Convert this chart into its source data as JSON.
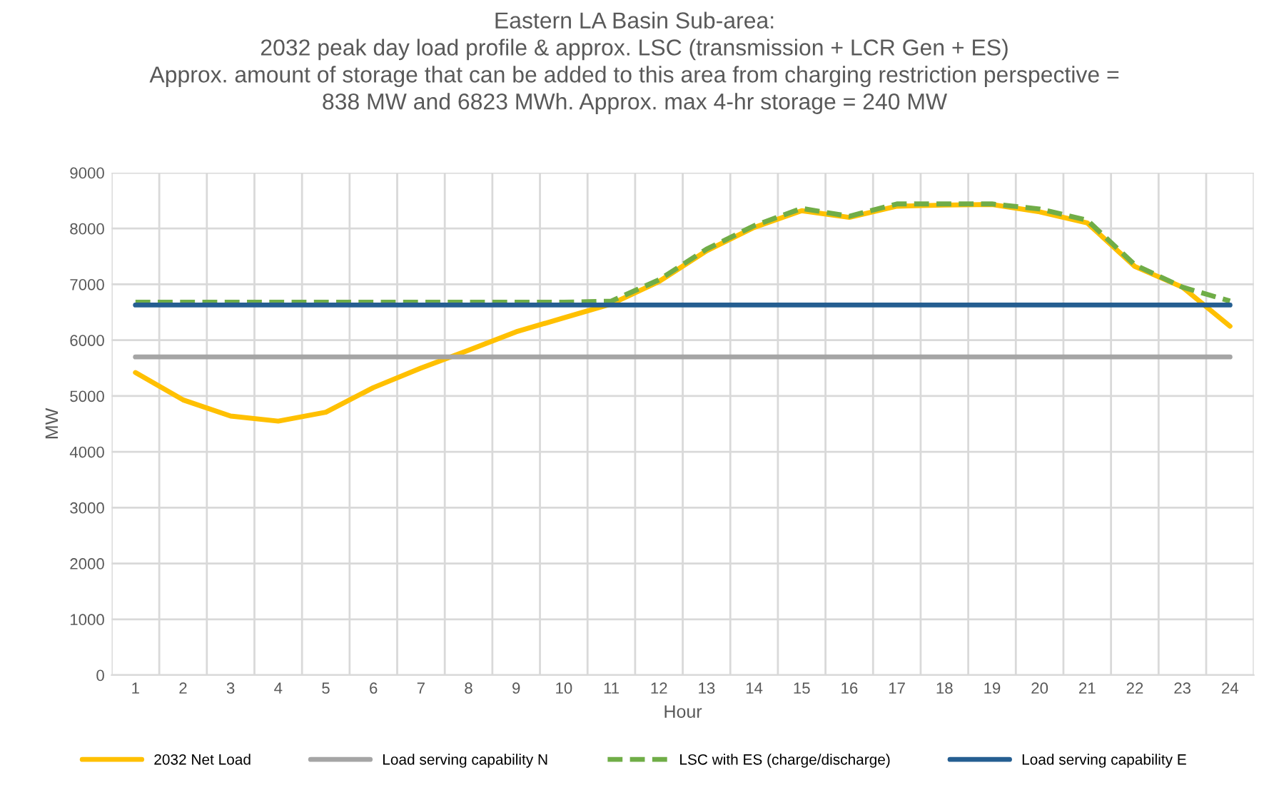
{
  "chart_data": {
    "type": "line",
    "title": "Eastern LA Basin Sub-area:\n2032 peak day load profile & approx. LSC (transmission + LCR Gen + ES)\nApprox. amount of storage that can be added to this area from charging restriction perspective =\n838 MW and 6823 MWh. Approx. max 4-hr storage = 240 MW",
    "xlabel": "Hour",
    "ylabel": "MW",
    "categories": [
      "1",
      "2",
      "3",
      "4",
      "5",
      "6",
      "7",
      "8",
      "9",
      "10",
      "11",
      "12",
      "13",
      "14",
      "15",
      "16",
      "17",
      "18",
      "19",
      "20",
      "21",
      "22",
      "23",
      "24"
    ],
    "series": [
      {
        "name": "2032 Net Load",
        "color": "#ffc000",
        "values": [
          5420,
          4930,
          4640,
          4550,
          4710,
          5150,
          5500,
          5820,
          6150,
          6400,
          6650,
          7050,
          7600,
          8020,
          8320,
          8200,
          8400,
          8420,
          8430,
          8300,
          8100,
          7320,
          6950,
          6250
        ]
      },
      {
        "name": "Load serving capability N",
        "color": "#a5a5a5",
        "values": [
          5700,
          5700,
          5700,
          5700,
          5700,
          5700,
          5700,
          5700,
          5700,
          5700,
          5700,
          5700,
          5700,
          5700,
          5700,
          5700,
          5700,
          5700,
          5700,
          5700,
          5700,
          5700,
          5700,
          5700
        ]
      },
      {
        "name": "LSC with ES (charge/discharge)",
        "color": "#70ad47",
        "line_style": "dashed",
        "values": [
          6680,
          6680,
          6680,
          6680,
          6680,
          6680,
          6680,
          6680,
          6680,
          6680,
          6700,
          7080,
          7630,
          8050,
          8360,
          8220,
          8440,
          8440,
          8440,
          8350,
          8150,
          7350,
          6950,
          6700
        ]
      },
      {
        "name": "Load serving capability E",
        "color": "#255e91",
        "values": [
          6630,
          6630,
          6630,
          6630,
          6630,
          6630,
          6630,
          6630,
          6630,
          6630,
          6630,
          6630,
          6630,
          6630,
          6630,
          6630,
          6630,
          6630,
          6630,
          6630,
          6630,
          6630,
          6630,
          6630
        ]
      }
    ],
    "ylim": [
      0,
      9000
    ],
    "yticks": [
      0,
      1000,
      2000,
      3000,
      4000,
      5000,
      6000,
      7000,
      8000,
      9000
    ],
    "grid": true,
    "legend": "bottom",
    "line_style": "solid",
    "marker": "none"
  }
}
